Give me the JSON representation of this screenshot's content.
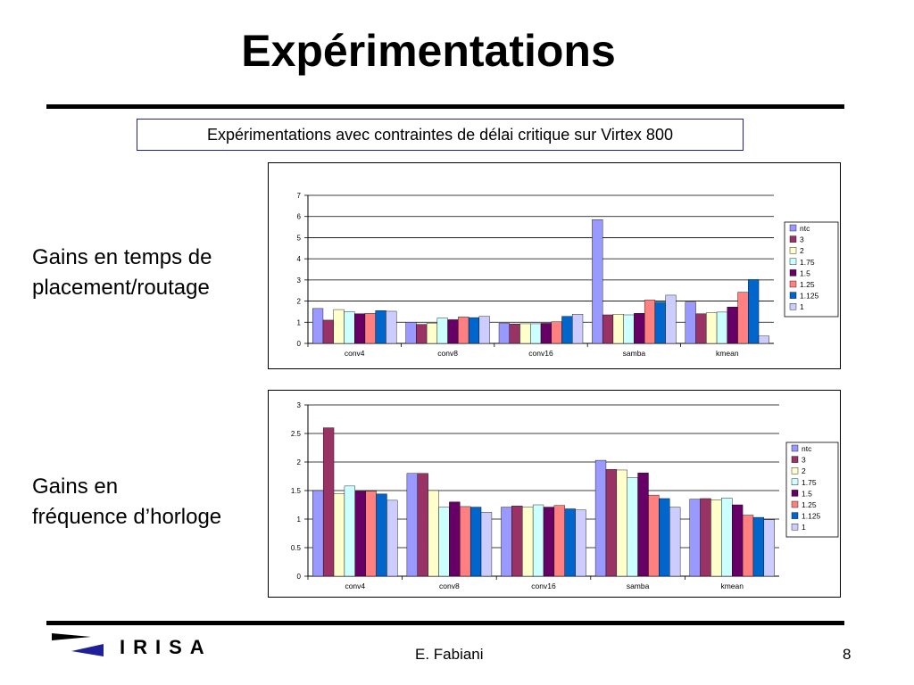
{
  "slide": {
    "title": "Expérimentations",
    "subtitle": "Expérimentations avec contraintes de délai critique sur Virtex 800",
    "label_top_line1": "Gains en temps de",
    "label_top_line2": "placement/routage",
    "label_bottom_line1": "Gains en",
    "label_bottom_line2": "fréquence d’horloge",
    "author": "E. Fabiani",
    "page_number": "8",
    "logo_text": "IRISA"
  },
  "colors": {
    "ntc": "#9999ff",
    "3": "#993366",
    "2": "#ffffcc",
    "1.75": "#ccffff",
    "1.5": "#660066",
    "1.25": "#ff8080",
    "1.125": "#0066cc",
    "1": "#ccccff",
    "logo": "#1f1f9a"
  },
  "chart_data": [
    {
      "type": "bar",
      "title": "",
      "xlabel": "",
      "ylabel": "",
      "categories": [
        "conv4",
        "conv8",
        "conv16",
        "samba",
        "kmean"
      ],
      "ylim": [
        0,
        7
      ],
      "yticks": [
        "0",
        "1",
        "2",
        "3",
        "4",
        "5",
        "6",
        "7"
      ],
      "grid": true,
      "legend": "right",
      "series": [
        {
          "name": "ntc",
          "values": [
            1.65,
            1.0,
            0.95,
            5.85,
            1.95
          ]
        },
        {
          "name": "3",
          "values": [
            1.1,
            0.9,
            0.92,
            1.35,
            1.4
          ]
        },
        {
          "name": "2",
          "values": [
            1.6,
            0.95,
            0.93,
            1.38,
            1.45
          ]
        },
        {
          "name": "1.75",
          "values": [
            1.5,
            1.2,
            0.93,
            1.35,
            1.48
          ]
        },
        {
          "name": "1.5",
          "values": [
            1.4,
            1.12,
            0.95,
            1.42,
            1.72
          ]
        },
        {
          "name": "1.25",
          "values": [
            1.42,
            1.25,
            1.02,
            2.05,
            2.42
          ]
        },
        {
          "name": "1.125",
          "values": [
            1.55,
            1.22,
            1.28,
            1.95,
            3.02
          ]
        },
        {
          "name": "1",
          "values": [
            1.52,
            1.28,
            1.38,
            2.28,
            0.35
          ]
        }
      ]
    },
    {
      "type": "bar",
      "title": "",
      "xlabel": "",
      "ylabel": "",
      "categories": [
        "conv4",
        "conv8",
        "conv16",
        "samba",
        "kmean"
      ],
      "ylim": [
        0,
        3
      ],
      "yticks": [
        "0",
        "0.5",
        "1",
        "1.5",
        "2",
        "2.5",
        "3"
      ],
      "grid": true,
      "legend": "right",
      "series": [
        {
          "name": "ntc",
          "values": [
            1.5,
            1.8,
            1.21,
            2.03,
            1.35
          ]
        },
        {
          "name": "3",
          "values": [
            2.6,
            1.8,
            1.23,
            1.87,
            1.36
          ]
        },
        {
          "name": "2",
          "values": [
            1.45,
            1.5,
            1.21,
            1.86,
            1.34
          ]
        },
        {
          "name": "1.75",
          "values": [
            1.58,
            1.21,
            1.25,
            1.73,
            1.37
          ]
        },
        {
          "name": "1.5",
          "values": [
            1.49,
            1.3,
            1.21,
            1.81,
            1.25
          ]
        },
        {
          "name": "1.25",
          "values": [
            1.49,
            1.22,
            1.24,
            1.42,
            1.07
          ]
        },
        {
          "name": "1.125",
          "values": [
            1.44,
            1.21,
            1.18,
            1.36,
            1.03
          ]
        },
        {
          "name": "1",
          "values": [
            1.33,
            1.12,
            1.16,
            1.21,
            0.99
          ]
        }
      ]
    }
  ]
}
